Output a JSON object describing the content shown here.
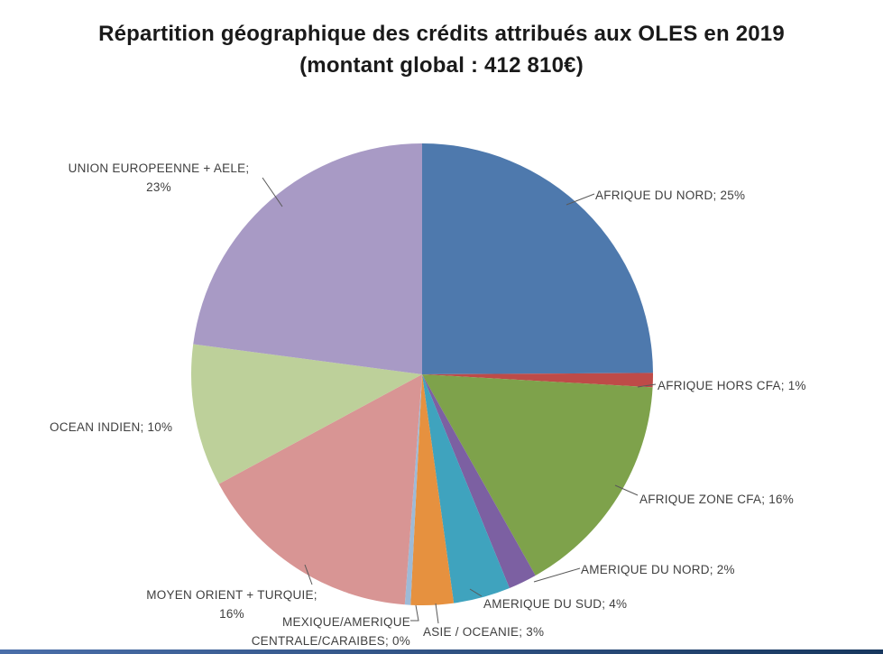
{
  "page": {
    "background": "#FFFFFF",
    "footer_bar_color": "#17375E",
    "label_text_color": "#3F3F3F",
    "title_text_color": "#1A1A1A"
  },
  "title": {
    "line1": "Répartition géographique des crédits attribués aux OLES en 2019",
    "line2": "(montant global : 412 810€)"
  },
  "chart_data": {
    "type": "pie",
    "title": "Répartition géographique des crédits attribués aux OLES en 2019 (montant global : 412 810€)",
    "unit": "%",
    "start_angle_deg": 0,
    "direction": "clockwise",
    "legend_position": "none",
    "labels_style": "outside with leader lines",
    "slices": [
      {
        "name": "AFRIQUE DU NORD",
        "value": 25,
        "color": "#4E79AD",
        "label_display": "AFRIQUE DU NORD; 25%"
      },
      {
        "name": "AFRIQUE HORS CFA",
        "value": 1,
        "color": "#BE4B48",
        "label_display": "AFRIQUE HORS CFA; 1%"
      },
      {
        "name": "AFRIQUE ZONE CFA",
        "value": 16,
        "color": "#7EA24B",
        "label_display": "AFRIQUE ZONE CFA; 16%"
      },
      {
        "name": "AMERIQUE DU NORD",
        "value": 2,
        "color": "#7C60A2",
        "label_display": "AMERIQUE DU NORD; 2%"
      },
      {
        "name": "AMERIQUE DU SUD",
        "value": 4,
        "color": "#3FA3BE",
        "label_display": "AMERIQUE DU SUD; 4%"
      },
      {
        "name": "ASIE / OCEANIE",
        "value": 3,
        "color": "#E6913F",
        "label_display": "ASIE / OCEANIE; 3%"
      },
      {
        "name": "MEXIQUE/AMERIQUE CENTRALE/CARAIBES",
        "value": 0,
        "color": "#9DBAD7",
        "label_display": "MEXIQUE/AMERIQUE\nCENTRALE/CARAIBES;  0%"
      },
      {
        "name": "MOYEN ORIENT + TURQUIE",
        "value": 16,
        "color": "#D89594",
        "label_display": "MOYEN ORIENT + TURQUIE;\n16%"
      },
      {
        "name": "OCEAN INDIEN",
        "value": 10,
        "color": "#BDD09A",
        "label_display": "OCEAN INDIEN; 10%"
      },
      {
        "name": "UNION EUROPEENNE + AELE",
        "value": 23,
        "color": "#A89AC5",
        "label_display": "UNION EUROPEENNE  + AELE;\n23%"
      }
    ]
  }
}
